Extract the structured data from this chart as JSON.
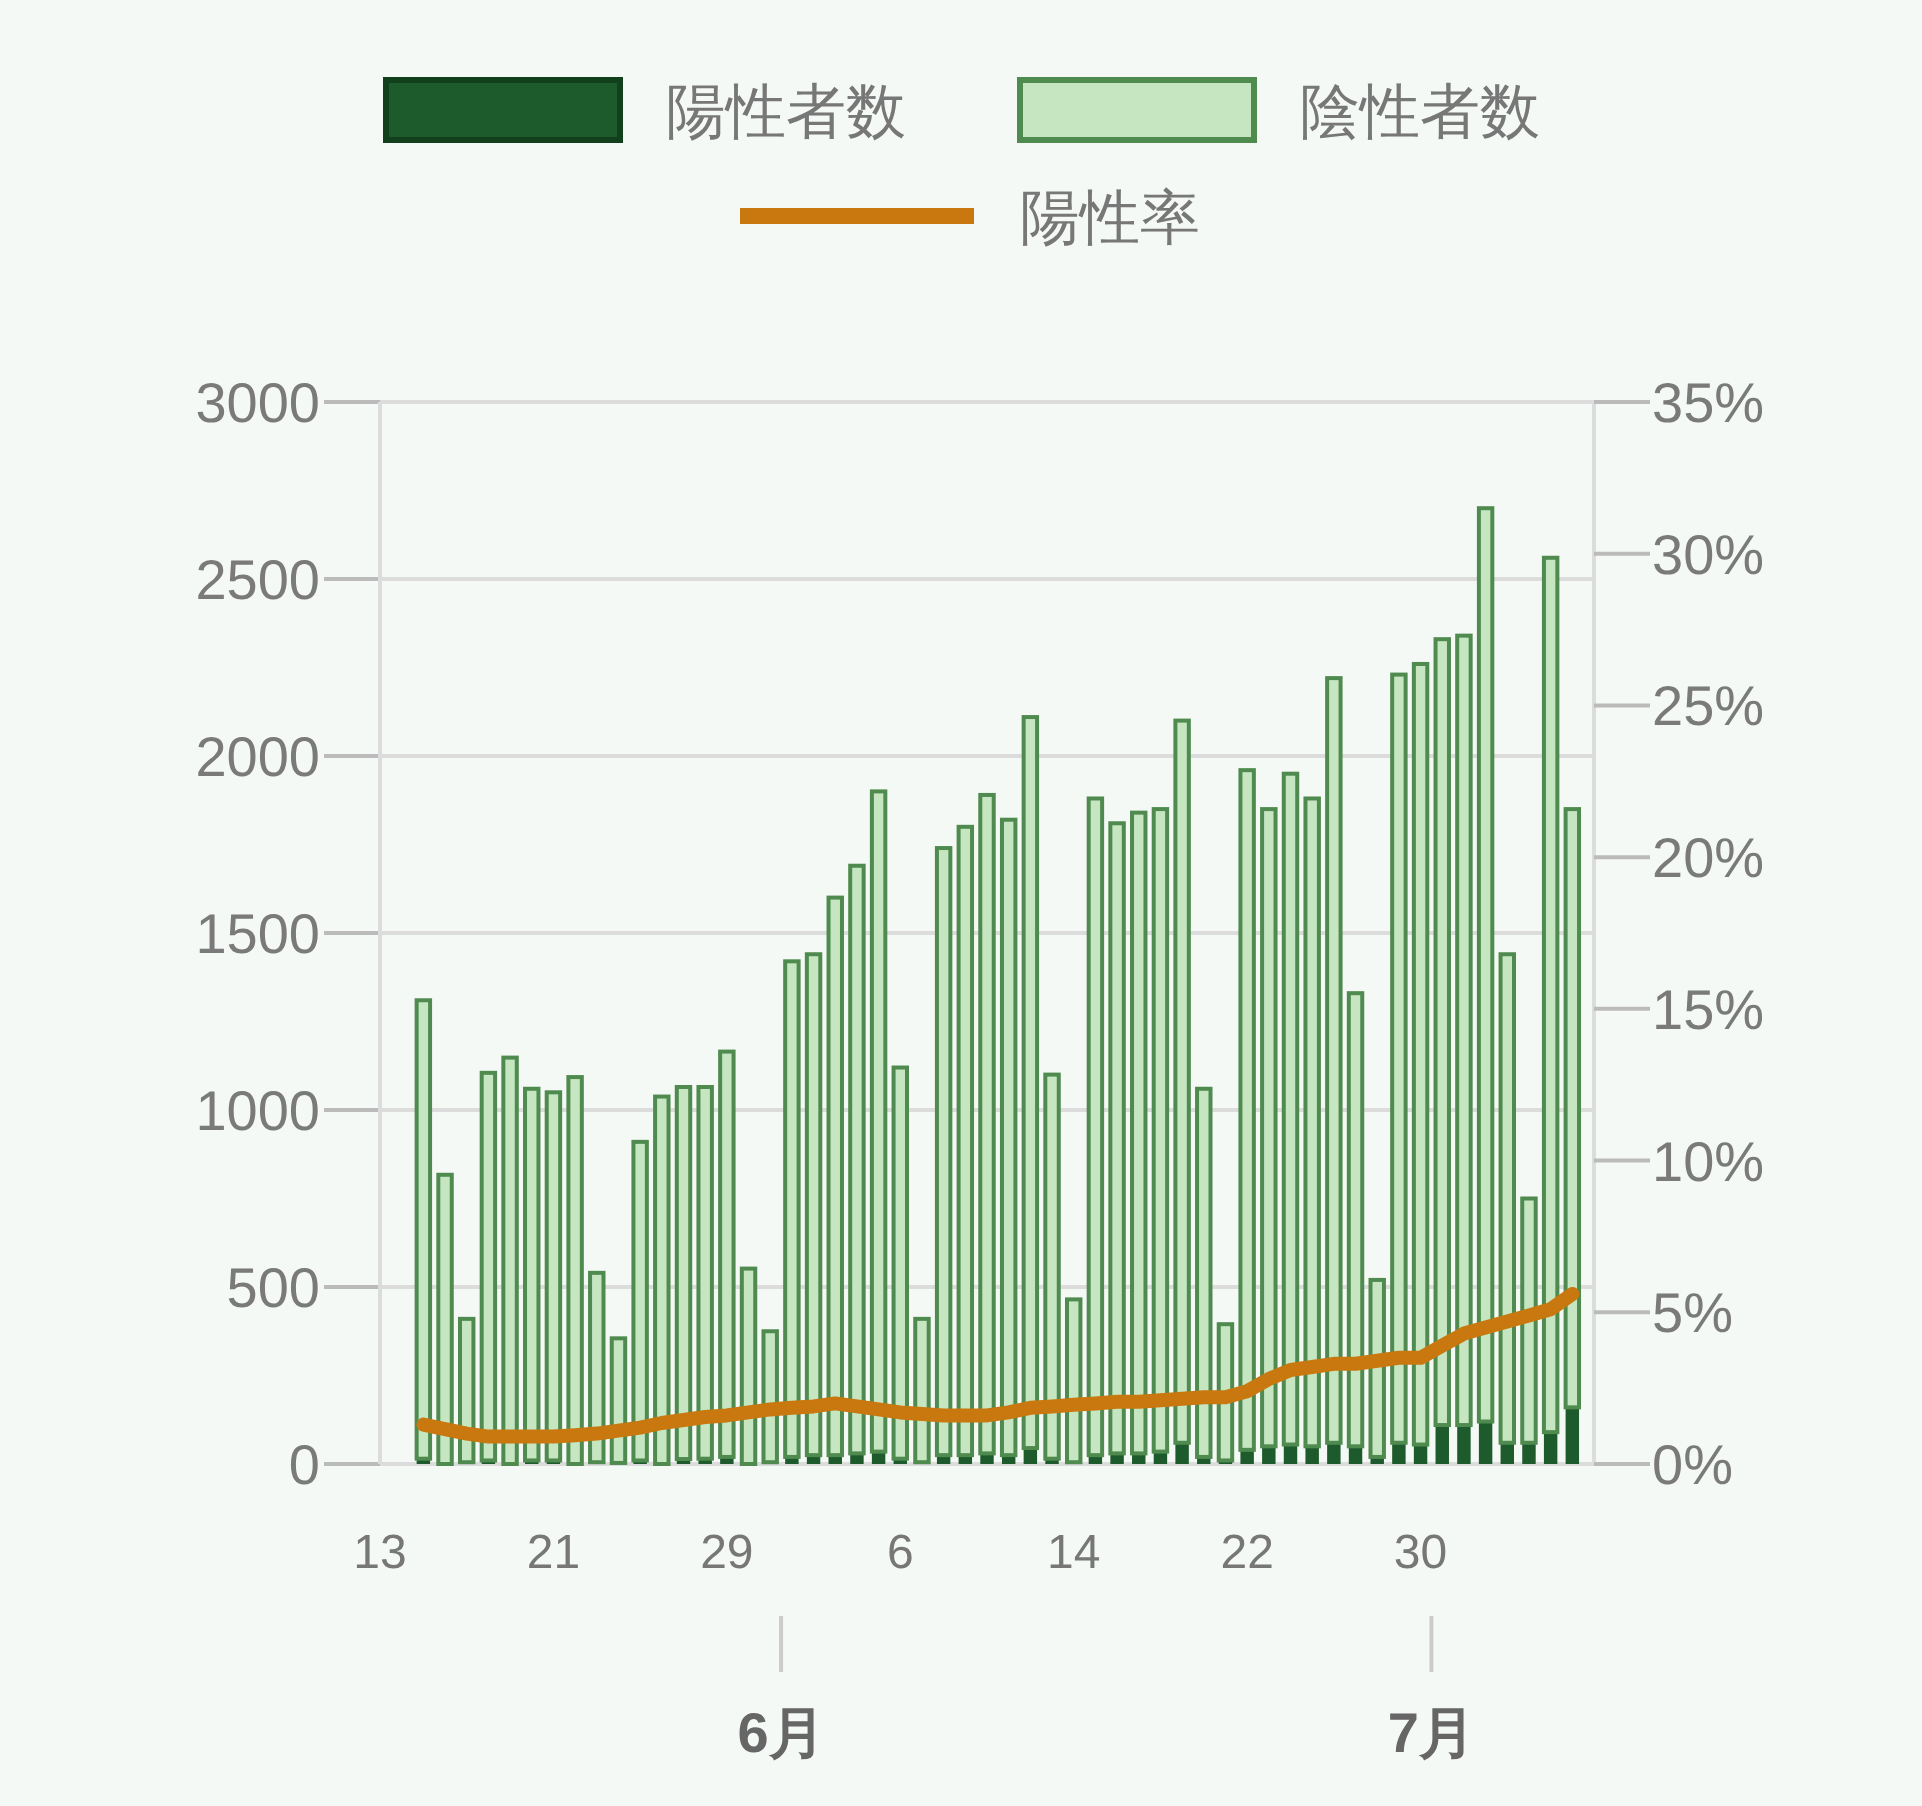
{
  "chart_data": {
    "type": "bar",
    "stacked": true,
    "legend": "top",
    "grid": "y",
    "x": [
      "--05-15",
      "--05-16",
      "--05-17",
      "--05-18",
      "--05-19",
      "--05-20",
      "--05-21",
      "--05-22",
      "--05-23",
      "--05-24",
      "--05-25",
      "--05-26",
      "--05-27",
      "--05-28",
      "--05-29",
      "--05-30",
      "--05-31",
      "--06-01",
      "--06-02",
      "--06-03",
      "--06-04",
      "--06-05",
      "--06-06",
      "--06-07",
      "--06-08",
      "--06-09",
      "--06-10",
      "--06-11",
      "--06-12",
      "--06-13",
      "--06-14",
      "--06-15",
      "--06-16",
      "--06-17",
      "--06-18",
      "--06-19",
      "--06-20",
      "--06-21",
      "--06-22",
      "--06-23",
      "--06-24",
      "--06-25",
      "--06-26",
      "--06-27",
      "--06-28",
      "--06-29",
      "--06-30",
      "--07-01",
      "--07-02",
      "--07-03",
      "--07-04",
      "--07-05",
      "--07-06",
      "--07-07"
    ],
    "series": [
      {
        "name": "陽性者数",
        "color": "#1d5a2c",
        "values": [
          15,
          null,
          5,
          10,
          null,
          10,
          10,
          null,
          5,
          3,
          10,
          null,
          14,
          15,
          20,
          null,
          5,
          20,
          25,
          25,
          30,
          35,
          15,
          5,
          25,
          25,
          30,
          25,
          45,
          15,
          5,
          25,
          30,
          30,
          35,
          60,
          20,
          10,
          40,
          50,
          55,
          50,
          60,
          50,
          20,
          60,
          55,
          110,
          110,
          120,
          60,
          60,
          90,
          160
        ]
      },
      {
        "name": "陰性者数",
        "color": "#c6e6c2",
        "values": [
          1295,
          817,
          405,
          1095,
          1148,
          1050,
          1040,
          1093,
          535,
          352,
          900,
          1038,
          1051,
          1050,
          1145,
          552,
          370,
          1400,
          1415,
          1575,
          1660,
          1865,
          1105,
          405,
          1715,
          1775,
          1860,
          1795,
          2065,
          1085,
          460,
          1855,
          1780,
          1810,
          1815,
          2040,
          1040,
          385,
          1920,
          1800,
          1895,
          1830,
          2160,
          1280,
          500,
          2170,
          2205,
          2220,
          2230,
          2580,
          1380,
          690,
          2470,
          1690
        ]
      },
      {
        "name": "陽性率",
        "type": "line",
        "axis": "y2",
        "color": "#c8780e",
        "values": [
          1.3,
          1.15,
          1.0,
          0.9,
          0.9,
          0.9,
          0.9,
          0.95,
          1.0,
          1.1,
          1.2,
          1.35,
          1.45,
          1.55,
          1.6,
          1.7,
          1.8,
          1.85,
          1.9,
          2.0,
          1.9,
          1.8,
          1.7,
          1.65,
          1.6,
          1.6,
          1.6,
          1.7,
          1.85,
          1.9,
          1.95,
          2.0,
          2.05,
          2.05,
          2.1,
          2.15,
          2.2,
          2.2,
          2.4,
          2.8,
          3.1,
          3.2,
          3.3,
          3.3,
          3.4,
          3.5,
          3.5,
          3.9,
          4.3,
          4.5,
          4.7,
          4.9,
          5.1,
          5.6
        ]
      }
    ],
    "xlim": [
      "--05-13",
      "--07-08"
    ],
    "xticks": [
      {
        "value": "--05-13",
        "label": "13"
      },
      {
        "value": "--05-21",
        "label": "21"
      },
      {
        "value": "--05-29",
        "label": "29"
      },
      {
        "value": "--06-06",
        "label": "6"
      },
      {
        "value": "--06-14",
        "label": "14"
      },
      {
        "value": "--06-22",
        "label": "22"
      },
      {
        "value": "--06-30",
        "label": "30"
      }
    ],
    "x2lim": [
      "--05-13",
      "--07-08"
    ],
    "x2ticks": [
      {
        "value": "--05-31T12:00",
        "label": "6月"
      },
      {
        "value": "--06-30T12:00",
        "label": "7月"
      }
    ],
    "ylim": [
      0,
      3000
    ],
    "yticks": [
      0,
      500,
      1000,
      1500,
      2000,
      2500,
      3000
    ],
    "y2lim": [
      0,
      35
    ],
    "y2ticks": [
      {
        "value": 0,
        "label": "0%"
      },
      {
        "value": 5,
        "label": "5%"
      },
      {
        "value": 10,
        "label": "10%"
      },
      {
        "value": 15,
        "label": "15%"
      },
      {
        "value": 20,
        "label": "20%"
      },
      {
        "value": 25,
        "label": "25%"
      },
      {
        "value": 30,
        "label": "30%"
      },
      {
        "value": 35,
        "label": "35%"
      }
    ]
  }
}
